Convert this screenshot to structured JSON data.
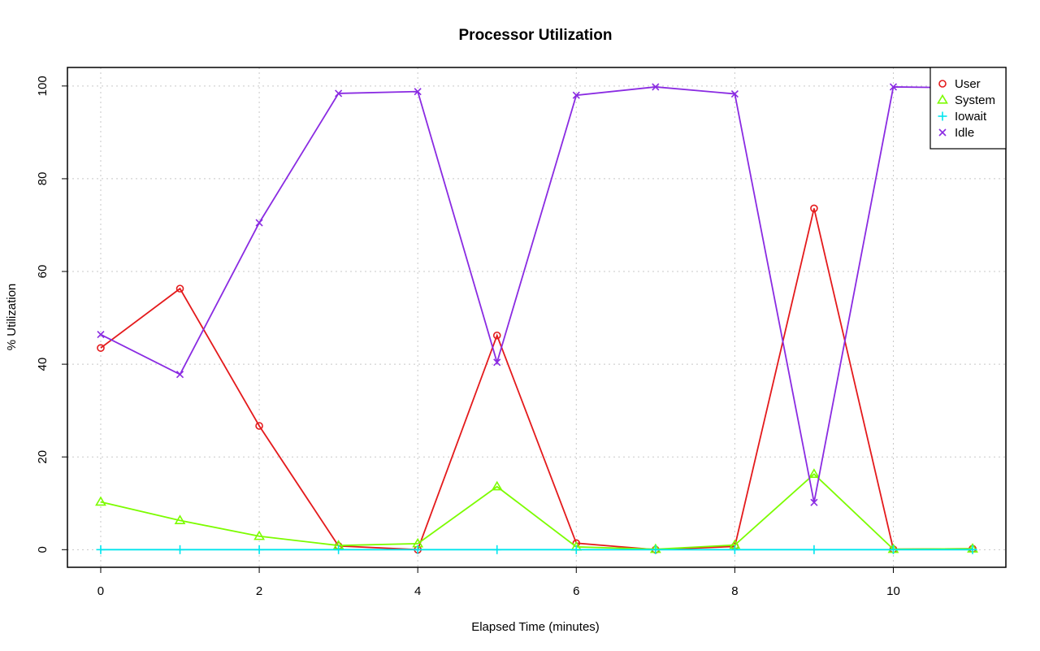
{
  "chart_data": {
    "type": "line",
    "title": "Processor Utilization",
    "xlabel": "Elapsed Time (minutes)",
    "ylabel": "% Utilization",
    "xlim": [
      -0.42,
      11.42
    ],
    "ylim": [
      -3.8,
      104.0
    ],
    "x_ticks": [
      0,
      2,
      4,
      6,
      8,
      10
    ],
    "y_ticks": [
      0,
      20,
      40,
      60,
      80,
      100
    ],
    "grid": true,
    "legend_position": "top-right",
    "x": [
      0,
      1,
      2,
      3,
      4,
      5,
      6,
      7,
      8,
      9,
      10,
      11
    ],
    "series": [
      {
        "name": "User",
        "color": "#e41a1c",
        "marker": "circle",
        "values": [
          43.5,
          56.3,
          26.7,
          0.8,
          0.0,
          46.2,
          1.4,
          0.0,
          0.7,
          73.6,
          0.1,
          0.2
        ]
      },
      {
        "name": "System",
        "color": "#7cfc00",
        "marker": "triangle",
        "values": [
          10.3,
          6.3,
          2.9,
          0.9,
          1.3,
          13.6,
          0.6,
          0.1,
          1.0,
          16.3,
          0.1,
          0.2
        ]
      },
      {
        "name": "Iowait",
        "color": "#00e5ee",
        "marker": "plus",
        "values": [
          0.0,
          0.0,
          0.0,
          0.0,
          0.0,
          0.0,
          0.0,
          0.0,
          0.0,
          0.0,
          0.0,
          0.0
        ]
      },
      {
        "name": "Idle",
        "color": "#8a2be2",
        "marker": "cross",
        "values": [
          46.4,
          37.8,
          70.5,
          98.4,
          98.8,
          40.4,
          98.0,
          99.8,
          98.3,
          10.2,
          99.8,
          99.6
        ]
      }
    ]
  }
}
